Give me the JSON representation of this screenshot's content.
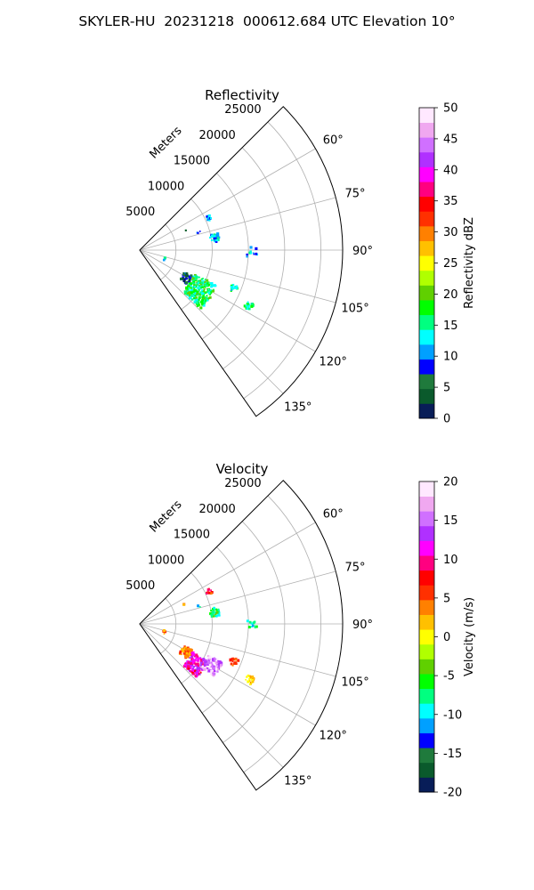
{
  "suptitle": "SKYLER-HU  20231218  000612.684 UTC Elevation 10°",
  "chart_data": [
    {
      "type": "polar-sector",
      "title": "Reflectivity",
      "radial_label": "Meters",
      "radial_ticks": [
        5000,
        10000,
        15000,
        20000,
        25000
      ],
      "rmax": 28000,
      "angle_range_deg": [
        45,
        145
      ],
      "angle_ticks": [
        "60°",
        "75°",
        "90°",
        "105°",
        "120°",
        "135°"
      ],
      "angle_tick_values": [
        60,
        75,
        90,
        105,
        120,
        135
      ],
      "grid": true,
      "colorbar": {
        "label": "Reflectivity dBZ",
        "range": [
          0,
          50
        ],
        "ticks": [
          0,
          5,
          10,
          15,
          20,
          25,
          30,
          35,
          40,
          45,
          50
        ],
        "stops": [
          "#081d58",
          "#0a5a2c",
          "#1f7a3c",
          "#0000ff",
          "#00a0ff",
          "#00ffff",
          "#00ff80",
          "#00ff00",
          "#60d000",
          "#b0ff00",
          "#ffff00",
          "#ffc000",
          "#ff8000",
          "#ff3000",
          "#ff0000",
          "#ff0080",
          "#ff00ff",
          "#b030ff",
          "#d070ff",
          "#f0a8f0",
          "#ffe8ff"
        ]
      },
      "echoes": [
        {
          "az": 65,
          "r": 10500,
          "v": 10,
          "n": 10,
          "spread": 500
        },
        {
          "az": 67,
          "r": 6800,
          "v": 3,
          "n": 2,
          "spread": 200
        },
        {
          "az": 73,
          "r": 8500,
          "v": 10,
          "n": 3,
          "spread": 300
        },
        {
          "az": 81,
          "r": 10500,
          "v": 12,
          "n": 32,
          "spread": 800
        },
        {
          "az": 91,
          "r": 15500,
          "v": 11,
          "n": 12,
          "spread": 900
        },
        {
          "az": 109,
          "r": 3500,
          "v": 14,
          "n": 4,
          "spread": 300
        },
        {
          "az": 121,
          "r": 7500,
          "v": 6,
          "n": 40,
          "spread": 800
        },
        {
          "az": 124,
          "r": 10000,
          "v": 16,
          "n": 260,
          "spread": 2200
        },
        {
          "az": 112,
          "r": 14000,
          "v": 15,
          "n": 18,
          "spread": 700
        },
        {
          "az": 117,
          "r": 17000,
          "v": 15,
          "n": 22,
          "spread": 700
        }
      ]
    },
    {
      "type": "polar-sector",
      "title": "Velocity",
      "radial_label": "Meters",
      "radial_ticks": [
        5000,
        10000,
        15000,
        20000,
        25000
      ],
      "rmax": 28000,
      "angle_range_deg": [
        45,
        145
      ],
      "angle_ticks": [
        "60°",
        "75°",
        "90°",
        "105°",
        "120°",
        "135°"
      ],
      "angle_tick_values": [
        60,
        75,
        90,
        105,
        120,
        135
      ],
      "grid": true,
      "colorbar": {
        "label": "Velocity (m/s)",
        "range": [
          -20,
          20
        ],
        "ticks": [
          -20,
          -15,
          -10,
          -5,
          0,
          5,
          10,
          15,
          20
        ],
        "stops": [
          "#081d58",
          "#0a5a2c",
          "#1f7a3c",
          "#0000ff",
          "#00a0ff",
          "#00ffff",
          "#00ff80",
          "#00ff00",
          "#60d000",
          "#b0ff00",
          "#ffff00",
          "#ffc000",
          "#ff8000",
          "#ff3000",
          "#ff0000",
          "#ff0080",
          "#ff00ff",
          "#b030ff",
          "#d070ff",
          "#f0a8f0",
          "#ffe8ff"
        ]
      },
      "echoes": [
        {
          "az": 65,
          "r": 10500,
          "v": 7,
          "n": 10,
          "spread": 500
        },
        {
          "az": 67,
          "r": 6800,
          "v": 5,
          "n": 2,
          "spread": 200
        },
        {
          "az": 73,
          "r": 8500,
          "v": -8,
          "n": 3,
          "spread": 300
        },
        {
          "az": 81,
          "r": 10500,
          "v": -7,
          "n": 32,
          "spread": 800
        },
        {
          "az": 91,
          "r": 15500,
          "v": -9,
          "n": 12,
          "spread": 900
        },
        {
          "az": 109,
          "r": 3500,
          "v": 3,
          "n": 4,
          "spread": 300
        },
        {
          "az": 121,
          "r": 7500,
          "v": 4,
          "n": 60,
          "spread": 900
        },
        {
          "az": 126,
          "r": 9500,
          "v": 11,
          "n": 150,
          "spread": 1600
        },
        {
          "az": 120,
          "r": 11500,
          "v": 16,
          "n": 110,
          "spread": 1400
        },
        {
          "az": 112,
          "r": 14000,
          "v": 7,
          "n": 18,
          "spread": 700
        },
        {
          "az": 117,
          "r": 17000,
          "v": 1,
          "n": 22,
          "spread": 700
        }
      ]
    }
  ]
}
